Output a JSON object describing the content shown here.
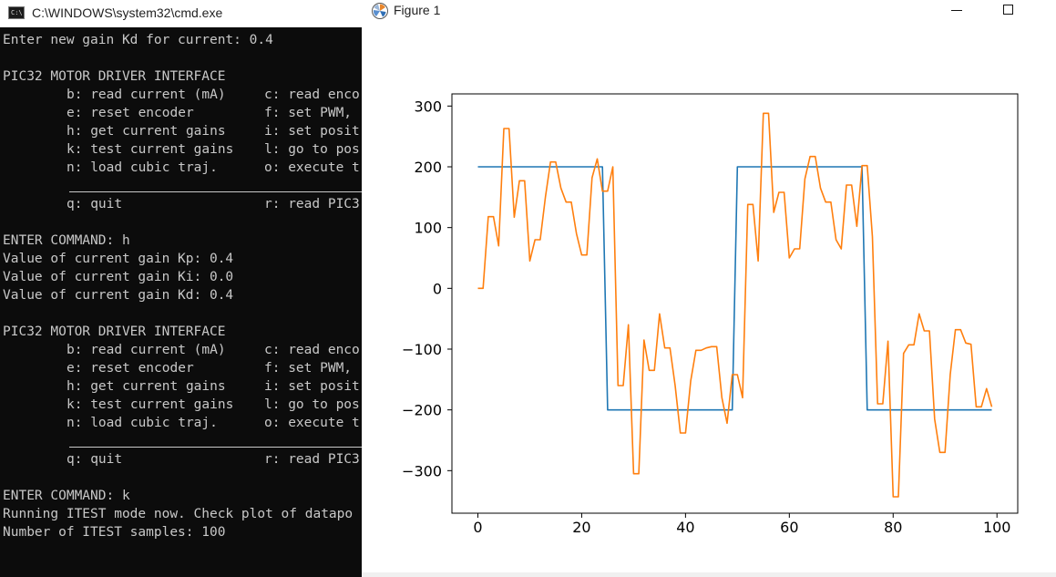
{
  "cmd": {
    "title": "C:\\WINDOWS\\system32\\cmd.exe",
    "icon": "cmd-icon",
    "icon_text": "C:\\",
    "lines": [
      {
        "t": "Enter new gain Kd for current: 0.4"
      },
      {
        "t": ""
      },
      {
        "t": "PIC32 MOTOR DRIVER INTERFACE"
      },
      {
        "a": "b: read current (mA)",
        "b": "c: read enco"
      },
      {
        "a": "e: reset encoder",
        "b": "f: set PWM,"
      },
      {
        "a": "h: get current gains",
        "b": "i: set posit"
      },
      {
        "a": "k: test current gains",
        "b": "l: go to pos"
      },
      {
        "a": "n: load cubic traj.",
        "b": "o: execute t"
      },
      {
        "rule": true
      },
      {
        "a": "q: quit",
        "b": "r: read PIC3"
      },
      {
        "t": ""
      },
      {
        "t": "ENTER COMMAND: h"
      },
      {
        "t": "Value of current gain Kp: 0.4"
      },
      {
        "t": "Value of current gain Ki: 0.0"
      },
      {
        "t": "Value of current gain Kd: 0.4"
      },
      {
        "t": ""
      },
      {
        "t": "PIC32 MOTOR DRIVER INTERFACE"
      },
      {
        "a": "b: read current (mA)",
        "b": "c: read enco"
      },
      {
        "a": "e: reset encoder",
        "b": "f: set PWM,"
      },
      {
        "a": "h: get current gains",
        "b": "i: set posit"
      },
      {
        "a": "k: test current gains",
        "b": "l: go to pos"
      },
      {
        "a": "n: load cubic traj.",
        "b": "o: execute t"
      },
      {
        "rule": true
      },
      {
        "a": "q: quit",
        "b": "r: read PIC3"
      },
      {
        "t": ""
      },
      {
        "t": "ENTER COMMAND: k"
      },
      {
        "t": "Running ITEST mode now. Check plot of datapo"
      },
      {
        "t": "Number of ITEST samples: 100"
      }
    ]
  },
  "figure": {
    "title": "Figure 1",
    "icon": "matplotlib-icon",
    "minimize_icon": "minimize-icon",
    "maximize_icon": "maximize-icon"
  },
  "chart_data": {
    "type": "line",
    "title": "",
    "xlabel": "",
    "ylabel": "",
    "xlim": [
      -5,
      104
    ],
    "ylim": [
      -370,
      320
    ],
    "xticks": [
      0,
      20,
      40,
      60,
      80,
      100
    ],
    "yticks": [
      300,
      200,
      100,
      0,
      -100,
      -200,
      -300
    ],
    "grid": false,
    "series": [
      {
        "color": "#1f77b4",
        "x": [
          0,
          1,
          2,
          3,
          4,
          5,
          6,
          7,
          8,
          9,
          10,
          11,
          12,
          13,
          14,
          15,
          16,
          17,
          18,
          19,
          20,
          21,
          22,
          23,
          24,
          25,
          26,
          27,
          28,
          29,
          30,
          31,
          32,
          33,
          34,
          35,
          36,
          37,
          38,
          39,
          40,
          41,
          42,
          43,
          44,
          45,
          46,
          47,
          48,
          49,
          50,
          51,
          52,
          53,
          54,
          55,
          56,
          57,
          58,
          59,
          60,
          61,
          62,
          63,
          64,
          65,
          66,
          67,
          68,
          69,
          70,
          71,
          72,
          73,
          74,
          75,
          76,
          77,
          78,
          79,
          80,
          81,
          82,
          83,
          84,
          85,
          86,
          87,
          88,
          89,
          90,
          91,
          92,
          93,
          94,
          95,
          96,
          97,
          98,
          99
        ],
        "y": [
          200,
          200,
          200,
          200,
          200,
          200,
          200,
          200,
          200,
          200,
          200,
          200,
          200,
          200,
          200,
          200,
          200,
          200,
          200,
          200,
          200,
          200,
          200,
          200,
          200,
          -200,
          -200,
          -200,
          -200,
          -200,
          -200,
          -200,
          -200,
          -200,
          -200,
          -200,
          -200,
          -200,
          -200,
          -200,
          -200,
          -200,
          -200,
          -200,
          -200,
          -200,
          -200,
          -200,
          -200,
          -200,
          200,
          200,
          200,
          200,
          200,
          200,
          200,
          200,
          200,
          200,
          200,
          200,
          200,
          200,
          200,
          200,
          200,
          200,
          200,
          200,
          200,
          200,
          200,
          200,
          200,
          -200,
          -200,
          -200,
          -200,
          -200,
          -200,
          -200,
          -200,
          -200,
          -200,
          -200,
          -200,
          -200,
          -200,
          -200,
          -200,
          -200,
          -200,
          -200,
          -200,
          -200,
          -200,
          -200,
          -200,
          -200
        ]
      },
      {
        "color": "#ff7f0e",
        "x": [
          0,
          1,
          2,
          3,
          4,
          5,
          6,
          7,
          8,
          9,
          10,
          11,
          12,
          13,
          14,
          15,
          16,
          17,
          18,
          19,
          20,
          21,
          22,
          23,
          24,
          25,
          26,
          27,
          28,
          29,
          30,
          31,
          32,
          33,
          34,
          35,
          36,
          37,
          38,
          39,
          40,
          41,
          42,
          43,
          44,
          45,
          46,
          47,
          48,
          49,
          50,
          51,
          52,
          53,
          54,
          55,
          56,
          57,
          58,
          59,
          60,
          61,
          62,
          63,
          64,
          65,
          66,
          67,
          68,
          69,
          70,
          71,
          72,
          73,
          74,
          75,
          76,
          77,
          78,
          79,
          80,
          81,
          82,
          83,
          84,
          85,
          86,
          87,
          88,
          89,
          90,
          91,
          92,
          93,
          94,
          95,
          96,
          97,
          98,
          99
        ],
        "y": [
          0,
          0,
          118,
          118,
          70,
          263,
          263,
          117,
          177,
          177,
          45,
          80,
          80,
          150,
          208,
          208,
          165,
          142,
          142,
          90,
          55,
          55,
          182,
          213,
          160,
          160,
          200,
          -160,
          -160,
          -60,
          -305,
          -305,
          -85,
          -135,
          -135,
          -42,
          -98,
          -98,
          -160,
          -238,
          -238,
          -152,
          -102,
          -102,
          -98,
          -96,
          -96,
          -180,
          -222,
          -142,
          -142,
          -180,
          138,
          138,
          45,
          288,
          288,
          125,
          158,
          158,
          50,
          65,
          65,
          180,
          217,
          217,
          165,
          142,
          142,
          80,
          65,
          170,
          170,
          102,
          202,
          202,
          85,
          -190,
          -190,
          -87,
          -343,
          -343,
          -107,
          -93,
          -93,
          -42,
          -70,
          -70,
          -215,
          -270,
          -270,
          -142,
          -68,
          -68,
          -90,
          -92,
          -195,
          -195,
          -165,
          -195
        ]
      }
    ]
  }
}
